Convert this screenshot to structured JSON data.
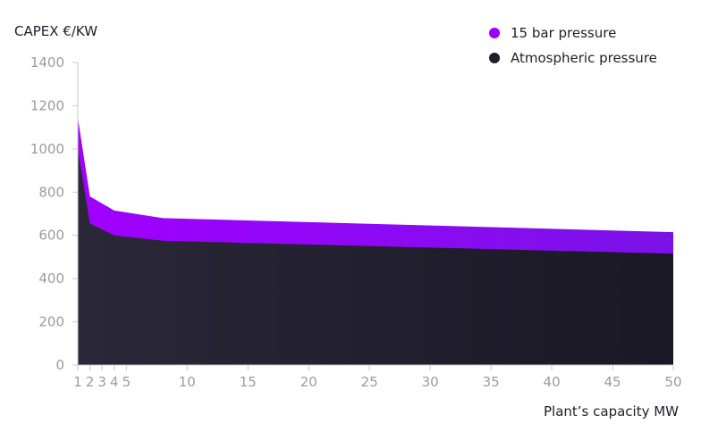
{
  "chart_data": {
    "type": "area",
    "ylabel": "CAPEX €/KW",
    "xlabel": "Plant’s capacity MW",
    "ylim": [
      0,
      1400
    ],
    "xlim": [
      1,
      50
    ],
    "y_ticks": [
      "0",
      "200",
      "400",
      "600",
      "800",
      "1000",
      "1200",
      "1400"
    ],
    "x_ticks": [
      {
        "value": 1,
        "label": "1"
      },
      {
        "value": 2,
        "label": "2"
      },
      {
        "value": 3,
        "label": "3"
      },
      {
        "value": 4,
        "label": "4"
      },
      {
        "value": 5,
        "label": "5"
      },
      {
        "value": 10,
        "label": "10"
      },
      {
        "value": 15,
        "label": "15"
      },
      {
        "value": 20,
        "label": "20"
      },
      {
        "value": 25,
        "label": "25"
      },
      {
        "value": 30,
        "label": "30"
      },
      {
        "value": 35,
        "label": "35"
      },
      {
        "value": 40,
        "label": "40"
      },
      {
        "value": 45,
        "label": "45"
      },
      {
        "value": 50,
        "label": "50"
      }
    ],
    "grid": false,
    "legend_position": "top-right",
    "series": [
      {
        "name": "15 bar pressure",
        "color": "#9B00FF",
        "x": [
          1,
          2,
          4,
          8,
          50
        ],
        "y": [
          1145,
          780,
          715,
          680,
          615
        ]
      },
      {
        "name": "Atmospheric pressure",
        "color": "#1F1D2B",
        "x": [
          1,
          2,
          4,
          8,
          50
        ],
        "y": [
          1000,
          655,
          600,
          575,
          515
        ]
      }
    ]
  },
  "colors": {
    "axis": "#C9C9C9",
    "tick_text": "#9B9B9B",
    "label_text": "#1E1E2A",
    "purple_dark": "#7A12E8"
  }
}
